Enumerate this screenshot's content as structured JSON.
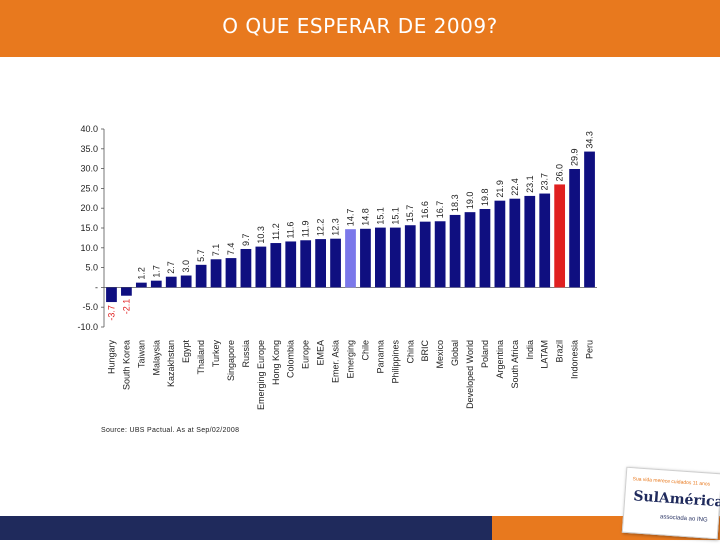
{
  "header": {
    "title": "O QUE ESPERAR DE 2009?"
  },
  "source_note": "Source: UBS Pactual. As at Sep/02/2008",
  "logo": {
    "top_text": "Sua vida merece cuidados 11 anos",
    "brand": "SulAmérica",
    "sub_text": "associada ao ING"
  },
  "colors": {
    "header": "#e8791e",
    "bar": "#0f0f80",
    "highlight_blue": "#7b78ea",
    "highlight_red": "#e02020",
    "negative_label": "#e02020",
    "footer_navy": "#1f2a5c"
  },
  "chart_data": {
    "type": "bar",
    "title": "",
    "xlabel": "",
    "ylabel": "",
    "ylim": [
      -10,
      40
    ],
    "yticks": [
      "40.0",
      "35.0",
      "30.0",
      "25.0",
      "20.0",
      "15.0",
      "10.0",
      "5.0",
      "-",
      "-5.0",
      "-10.0"
    ],
    "categories": [
      "Hungary",
      "South Korea",
      "Taiwan",
      "Malaysia",
      "Kazakhstan",
      "Egypt",
      "Thailand",
      "Turkey",
      "Singapore",
      "Russia",
      "Emerging Europe",
      "Hong Kong",
      "Colombia",
      "Europe",
      "EMEA",
      "Emer. Asia",
      "Emerging",
      "Chile",
      "Panama",
      "Philippines",
      "China",
      "BRIC",
      "Mexico",
      "Global",
      "Developed World",
      "Poland",
      "Argentina",
      "South Africa",
      "India",
      "LATAM",
      "Brazil",
      "Indonesia",
      "Peru"
    ],
    "values": [
      -3.7,
      -2.1,
      1.2,
      1.7,
      2.7,
      3.0,
      5.7,
      7.1,
      7.4,
      9.7,
      10.3,
      11.2,
      11.6,
      11.9,
      12.2,
      12.3,
      14.7,
      14.8,
      15.1,
      15.1,
      15.7,
      16.6,
      16.7,
      18.3,
      19.0,
      19.8,
      21.9,
      22.4,
      23.1,
      23.7,
      26.0,
      29.9,
      34.3
    ],
    "value_labels": [
      "-3.7",
      "-2.1",
      "1.2",
      "1.7",
      "2.7",
      "3.0",
      "5.7",
      "7.1",
      "7.4",
      "9.7",
      "10.3",
      "11.2",
      "11.6",
      "11.9",
      "12.2",
      "12.3",
      "14.7",
      "14.8",
      "15.1",
      "15.1",
      "15.7",
      "16.6",
      "16.7",
      "18.3",
      "19.0",
      "19.8",
      "21.9",
      "22.4",
      "23.1",
      "23.7",
      "26.0",
      "29.9",
      "34.3"
    ],
    "highlight": {
      "Emerging": "blue",
      "Brazil": "red"
    }
  }
}
